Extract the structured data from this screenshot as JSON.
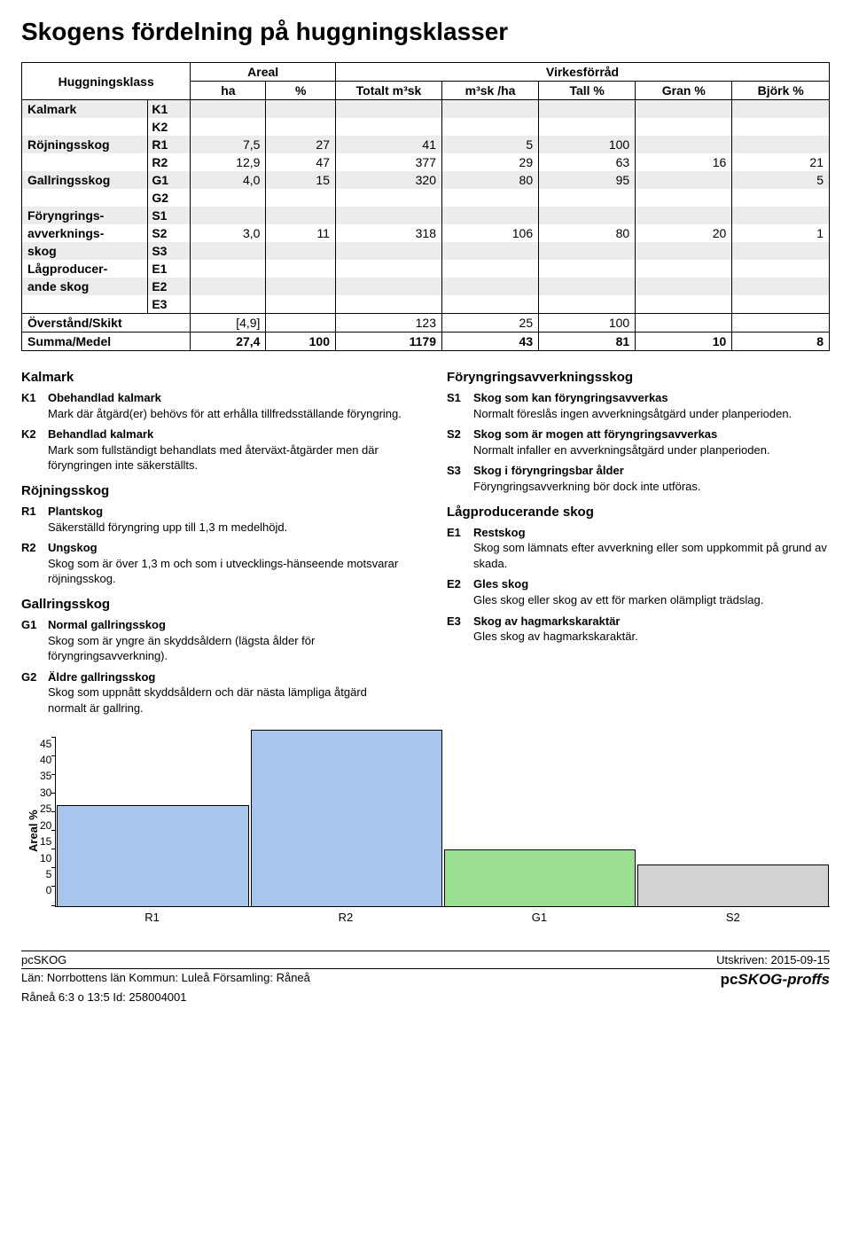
{
  "title": "Skogens fördelning på huggningsklasser",
  "table": {
    "headers": {
      "cat": "Huggningsklass",
      "areal": "Areal",
      "virkes": "Virkesförråd",
      "ha": "ha",
      "pc": "%",
      "tot": "Totalt m³sk",
      "mha": "m³sk /ha",
      "tall": "Tall %",
      "gran": "Gran %",
      "bjork": "Björk %"
    },
    "rows": [
      {
        "label": "Kalmark",
        "code": "K1",
        "stripe": true
      },
      {
        "label": "",
        "code": "K2"
      },
      {
        "label": "Röjningsskog",
        "code": "R1",
        "ha": "7,5",
        "pc": "27",
        "tot": "41",
        "mha": "5",
        "tall": "100",
        "stripe": true
      },
      {
        "label": "",
        "code": "R2",
        "ha": "12,9",
        "pc": "47",
        "tot": "377",
        "mha": "29",
        "tall": "63",
        "gran": "16",
        "bjork": "21"
      },
      {
        "label": "Gallringsskog",
        "code": "G1",
        "ha": "4,0",
        "pc": "15",
        "tot": "320",
        "mha": "80",
        "tall": "95",
        "bjork": "5",
        "stripe": true
      },
      {
        "label": "",
        "code": "G2"
      },
      {
        "label": "Föryngrings-",
        "code": "S1",
        "stripe": true
      },
      {
        "label": "avverknings-",
        "code": "S2",
        "ha": "3,0",
        "pc": "11",
        "tot": "318",
        "mha": "106",
        "tall": "80",
        "gran": "20",
        "bjork": "1"
      },
      {
        "label": "skog",
        "code": "S3",
        "stripe": true
      },
      {
        "label": "Lågproducer-",
        "code": "E1"
      },
      {
        "label": "ande skog",
        "code": "E2",
        "stripe": true
      },
      {
        "label": "",
        "code": "E3"
      }
    ],
    "over": {
      "label": "Överstånd/Skikt",
      "ha": "[4,9]",
      "tot": "123",
      "mha": "25",
      "tall": "100"
    },
    "sum": {
      "label": "Summa/Medel",
      "ha": "27,4",
      "pc": "100",
      "tot": "1179",
      "mha": "43",
      "tall": "81",
      "gran": "10",
      "bjork": "8"
    }
  },
  "defs": {
    "left": [
      {
        "heading": "Kalmark",
        "items": [
          {
            "k": "K1",
            "t": "Obehandlad kalmark",
            "d": "Mark där åtgärd(er) behövs för att erhålla tillfredsställande föryngring."
          },
          {
            "k": "K2",
            "t": "Behandlad kalmark",
            "d": "Mark som fullständigt behandlats med återväxt-åtgärder men där föryngringen inte säkerställts."
          }
        ]
      },
      {
        "heading": "Röjningsskog",
        "items": [
          {
            "k": "R1",
            "t": "Plantskog",
            "d": "Säkerställd föryngring upp till 1,3 m medelhöjd."
          },
          {
            "k": "R2",
            "t": "Ungskog",
            "d": "Skog som är över 1,3 m och som i utvecklings-hänseende motsvarar röjningsskog."
          }
        ]
      },
      {
        "heading": "Gallringsskog",
        "items": [
          {
            "k": "G1",
            "t": "Normal gallringsskog",
            "d": "Skog som är yngre än skyddsåldern (lägsta ålder för föryngringsavverkning)."
          },
          {
            "k": "G2",
            "t": "Äldre gallringsskog",
            "d": "Skog som uppnått skyddsåldern och där nästa lämpliga åtgärd normalt är gallring."
          }
        ]
      }
    ],
    "right": [
      {
        "heading": "Föryngringsavverkningsskog",
        "items": [
          {
            "k": "S1",
            "t": "Skog som kan föryngringsavverkas",
            "d": "Normalt föreslås ingen avverkningsåtgärd under planperioden."
          },
          {
            "k": "S2",
            "t": "Skog som är mogen att föryngringsavverkas",
            "d": "Normalt infaller en avverkningsåtgärd under planperioden."
          },
          {
            "k": "S3",
            "t": "Skog i föryngringsbar ålder",
            "d": "Föryngringsavverkning bör dock inte utföras."
          }
        ]
      },
      {
        "heading": "Lågproducerande skog",
        "items": [
          {
            "k": "E1",
            "t": "Restskog",
            "d": "Skog som lämnats efter avverkning eller som uppkommit på grund av skada."
          },
          {
            "k": "E2",
            "t": "Gles skog",
            "d": "Gles skog eller skog av ett för marken olämpligt trädslag."
          },
          {
            "k": "E3",
            "t": "Skog av hagmarkskaraktär",
            "d": "Gles skog av hagmarkskaraktär."
          }
        ]
      }
    ]
  },
  "chart": {
    "type": "bar",
    "ylabel": "Areal %",
    "ylim": [
      0,
      45
    ],
    "ytick_step": 5,
    "categories": [
      "R1",
      "R2",
      "G1",
      "S2"
    ],
    "values": [
      27,
      47,
      15,
      11
    ],
    "bar_colors": [
      "#a7c6ed",
      "#a7c6ed",
      "#9be090",
      "#d2d2d2"
    ],
    "border_color": "#000000",
    "background_color": "#ffffff"
  },
  "footer": {
    "brand_small": "pcSKOG",
    "printed_label": "Utskriven:",
    "printed_date": "2015-09-15",
    "line2": "Län: Norrbottens län   Kommun: Luleå   Församling: Råneå",
    "line3": "Råneå 6:3 o 13:5 Id: 258004001",
    "brand_big_prefix": "pc",
    "brand_big_suffix": "SKOG-proffs"
  }
}
